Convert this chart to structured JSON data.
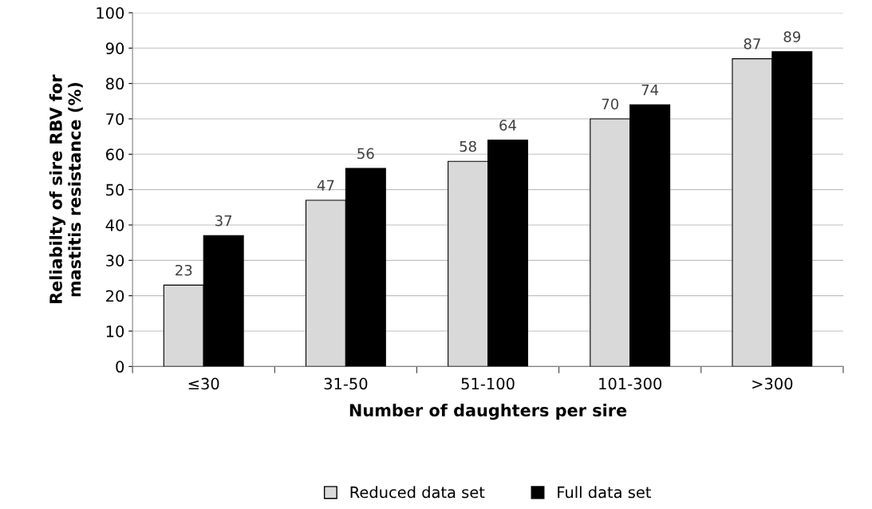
{
  "chart_data": {
    "type": "bar",
    "xlabel": "Number of daughters per sire",
    "ylabel": "Reliabilty of sire RBV for\nmastitis resistance (%)",
    "categories": [
      "≤30",
      "31-50",
      "51-100",
      "101-300",
      ">300"
    ],
    "series": [
      {
        "name": "Reduced data set",
        "color": "#d9d9d9",
        "values": [
          23,
          47,
          58,
          70,
          87
        ]
      },
      {
        "name": "Full data set",
        "color": "#000000",
        "values": [
          37,
          56,
          64,
          74,
          89
        ]
      }
    ],
    "ylim": [
      0,
      100
    ],
    "yticks": [
      0,
      10,
      20,
      30,
      40,
      50,
      60,
      70,
      80,
      90,
      100
    ],
    "grid": "y",
    "legend": "bottom",
    "data_labels": true
  }
}
